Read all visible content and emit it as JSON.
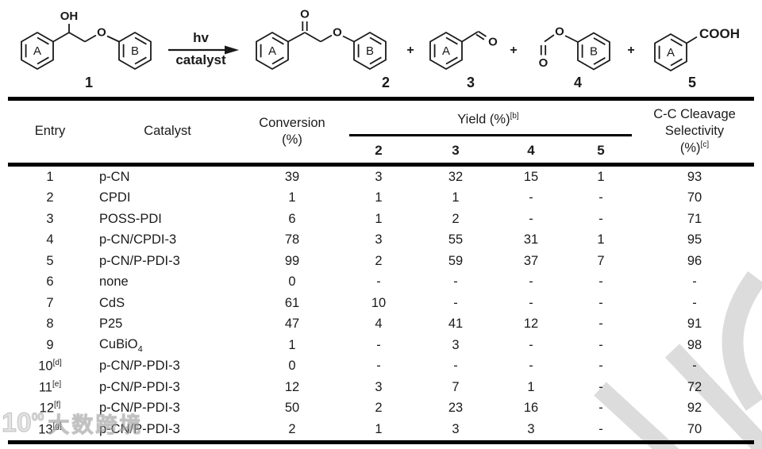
{
  "scheme": {
    "substrate": {
      "label": "1",
      "oh": "OH",
      "o_ether": "O",
      "ring_a": "A",
      "ring_b": "B"
    },
    "arrow": {
      "top": "hv",
      "bottom": "catalyst"
    },
    "plus": "+",
    "product2": {
      "label": "2",
      "o_carbonyl": "O",
      "o_ether": "O",
      "ring_a": "A",
      "ring_b": "B"
    },
    "product3": {
      "label": "3",
      "o": "O",
      "ring_a": "A"
    },
    "product4": {
      "label": "4",
      "o_top": "O",
      "o_bottom": "O",
      "ring_b": "B"
    },
    "product5": {
      "label": "5",
      "cooh": "COOH",
      "ring_a": "A"
    }
  },
  "table": {
    "headers": {
      "entry": "Entry",
      "catalyst": "Catalyst",
      "conversion_line1": "Conversion",
      "conversion_line2": "(%)",
      "yield_label": "Yield (%)",
      "yield_sup": "[b]",
      "yield_subcols": [
        "2",
        "3",
        "4",
        "5"
      ],
      "selectivity_line1": "C-C Cleavage",
      "selectivity_line2": "Selectivity",
      "selectivity_line3": "(%)",
      "selectivity_sup": "[c]"
    },
    "rows": [
      {
        "entry": "1",
        "entry_sup": "",
        "catalyst": "p-CN",
        "catalyst_sub": "",
        "conversion": "39",
        "y2": "3",
        "y3": "32",
        "y4": "15",
        "y5": "1",
        "selectivity": "93"
      },
      {
        "entry": "2",
        "entry_sup": "",
        "catalyst": "CPDI",
        "catalyst_sub": "",
        "conversion": "1",
        "y2": "1",
        "y3": "1",
        "y4": "-",
        "y5": "-",
        "selectivity": "70"
      },
      {
        "entry": "3",
        "entry_sup": "",
        "catalyst": "POSS-PDI",
        "catalyst_sub": "",
        "conversion": "6",
        "y2": "1",
        "y3": "2",
        "y4": "-",
        "y5": "-",
        "selectivity": "71"
      },
      {
        "entry": "4",
        "entry_sup": "",
        "catalyst": "p-CN/CPDI-3",
        "catalyst_sub": "",
        "conversion": "78",
        "y2": "3",
        "y3": "55",
        "y4": "31",
        "y5": "1",
        "selectivity": "95"
      },
      {
        "entry": "5",
        "entry_sup": "",
        "catalyst": "p-CN/P-PDI-3",
        "catalyst_sub": "",
        "conversion": "99",
        "y2": "2",
        "y3": "59",
        "y4": "37",
        "y5": "7",
        "selectivity": "96"
      },
      {
        "entry": "6",
        "entry_sup": "",
        "catalyst": "none",
        "catalyst_sub": "",
        "conversion": "0",
        "y2": "-",
        "y3": "-",
        "y4": "-",
        "y5": "-",
        "selectivity": "-"
      },
      {
        "entry": "7",
        "entry_sup": "",
        "catalyst": "CdS",
        "catalyst_sub": "",
        "conversion": "61",
        "y2": "10",
        "y3": "-",
        "y4": "-",
        "y5": "-",
        "selectivity": "-"
      },
      {
        "entry": "8",
        "entry_sup": "",
        "catalyst": "P25",
        "catalyst_sub": "",
        "conversion": "47",
        "y2": "4",
        "y3": "41",
        "y4": "12",
        "y5": "-",
        "selectivity": "91"
      },
      {
        "entry": "9",
        "entry_sup": "",
        "catalyst": "CuBiO",
        "catalyst_sub": "4",
        "conversion": "1",
        "y2": "-",
        "y3": "3",
        "y4": "-",
        "y5": "-",
        "selectivity": "98"
      },
      {
        "entry": "10",
        "entry_sup": "[d]",
        "catalyst": "p-CN/P-PDI-3",
        "catalyst_sub": "",
        "conversion": "0",
        "y2": "-",
        "y3": "-",
        "y4": "-",
        "y5": "-",
        "selectivity": "-"
      },
      {
        "entry": "11",
        "entry_sup": "[e]",
        "catalyst": "p-CN/P-PDI-3",
        "catalyst_sub": "",
        "conversion": "12",
        "y2": "3",
        "y3": "7",
        "y4": "1",
        "y5": "-",
        "selectivity": "72"
      },
      {
        "entry": "12",
        "entry_sup": "[f]",
        "catalyst": "p-CN/P-PDI-3",
        "catalyst_sub": "",
        "conversion": "50",
        "y2": "2",
        "y3": "23",
        "y4": "16",
        "y5": "-",
        "selectivity": "92"
      },
      {
        "entry": "13",
        "entry_sup": "[g]",
        "catalyst": "p-CN/P-PDI-3",
        "catalyst_sub": "",
        "conversion": "2",
        "y2": "1",
        "y3": "3",
        "y4": "3",
        "y5": "-",
        "selectivity": "70"
      }
    ]
  },
  "watermark": {
    "logo_text": "10",
    "logo_sup": "00",
    "text": "大数跨境"
  }
}
